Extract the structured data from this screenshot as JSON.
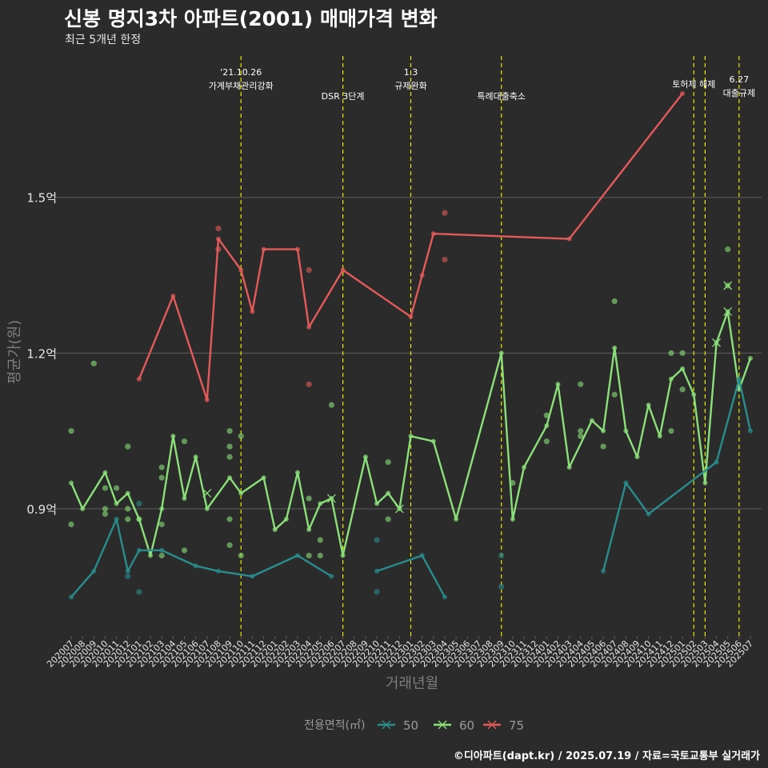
{
  "title": "신봉 명지3차 아파트(2001) 매매가격 변화",
  "subtitle": "최근 5개년 한정",
  "caption": "©디아파트(dapt.kr) / 2025.07.19 / 자료=국토교통부 실거래가",
  "colors": {
    "background": "#2b2b2b",
    "grid": "#5e5e5e",
    "event_line": "#e8e800",
    "text": "#e6e6e6"
  },
  "chart_data": {
    "type": "line",
    "xlabel": "거래년월",
    "ylabel": "평균가(원)",
    "ylim": [
      0.655,
      1.78
    ],
    "yticks": [
      {
        "value": 0.9,
        "label": "0.9억"
      },
      {
        "value": 1.2,
        "label": "1.2억"
      },
      {
        "value": 1.5,
        "label": "1.5억"
      }
    ],
    "categories": [
      "202007",
      "202008",
      "202009",
      "202010",
      "202011",
      "202012",
      "202101",
      "202102",
      "202103",
      "202104",
      "202105",
      "202106",
      "202107",
      "202108",
      "202109",
      "202110",
      "202111",
      "202112",
      "202201",
      "202202",
      "202203",
      "202204",
      "202205",
      "202206",
      "202207",
      "202208",
      "202209",
      "202210",
      "202211",
      "202212",
      "202301",
      "202302",
      "202303",
      "202304",
      "202305",
      "202306",
      "202307",
      "202308",
      "202309",
      "202310",
      "202311",
      "202312",
      "202401",
      "202402",
      "202403",
      "202404",
      "202405",
      "202406",
      "202407",
      "202408",
      "202409",
      "202410",
      "202411",
      "202412",
      "202501",
      "202502",
      "202503",
      "202504",
      "202505",
      "202506",
      "202507"
    ],
    "legend": {
      "title": "전용면적(㎡)",
      "position": "bottom"
    },
    "series": [
      {
        "name": "50",
        "color": "#2a8c8c",
        "line": [
          [
            0,
            0.73
          ],
          [
            2,
            0.78
          ],
          [
            4,
            0.88
          ],
          [
            5,
            0.78
          ],
          [
            6,
            0.82
          ],
          [
            8,
            0.82
          ],
          [
            11,
            0.79
          ],
          [
            13,
            0.78
          ],
          [
            16,
            0.77
          ],
          [
            20,
            0.81
          ],
          [
            23,
            0.77
          ],
          null,
          [
            27,
            0.78
          ],
          [
            31,
            0.81
          ],
          [
            33,
            0.73
          ],
          null,
          [
            47,
            0.78
          ],
          [
            49,
            0.95
          ],
          [
            51,
            0.89
          ],
          [
            57,
            0.99
          ],
          [
            59,
            1.15
          ],
          [
            60,
            1.05
          ]
        ],
        "points": [
          [
            6,
            0.91
          ],
          [
            5,
            0.77
          ],
          [
            6,
            0.74
          ],
          [
            27,
            0.84
          ],
          [
            27,
            0.74
          ],
          [
            38,
            0.81
          ],
          [
            38,
            0.75
          ]
        ],
        "crosses": []
      },
      {
        "name": "60",
        "color": "#8be07a",
        "line": [
          [
            0,
            0.95
          ],
          [
            1,
            0.9
          ],
          [
            3,
            0.97
          ],
          [
            4,
            0.91
          ],
          [
            5,
            0.93
          ],
          [
            6,
            0.88
          ],
          [
            7,
            0.81
          ],
          [
            8,
            0.9
          ],
          [
            9,
            1.04
          ],
          [
            10,
            0.92
          ],
          [
            11,
            1.0
          ],
          [
            12,
            0.9
          ],
          [
            14,
            0.96
          ],
          [
            15,
            0.93
          ],
          [
            17,
            0.96
          ],
          [
            18,
            0.86
          ],
          [
            19,
            0.88
          ],
          [
            20,
            0.97
          ],
          [
            21,
            0.86
          ],
          [
            22,
            0.91
          ],
          [
            23,
            0.92
          ],
          [
            24,
            0.81
          ],
          [
            26,
            1.0
          ],
          [
            27,
            0.91
          ],
          [
            28,
            0.93
          ],
          [
            29,
            0.9
          ],
          [
            30,
            1.04
          ],
          [
            32,
            1.03
          ],
          [
            34,
            0.88
          ],
          [
            38,
            1.2
          ],
          [
            39,
            0.88
          ],
          [
            40,
            0.98
          ],
          [
            42,
            1.06
          ],
          [
            43,
            1.14
          ],
          [
            44,
            0.98
          ],
          [
            46,
            1.07
          ],
          [
            47,
            1.05
          ],
          [
            48,
            1.21
          ],
          [
            49,
            1.05
          ],
          [
            50,
            1.0
          ],
          [
            51,
            1.1
          ],
          [
            52,
            1.04
          ],
          [
            53,
            1.15
          ],
          [
            54,
            1.17
          ],
          [
            55,
            1.12
          ],
          [
            56,
            0.95
          ],
          [
            57,
            1.22
          ],
          [
            58,
            1.28
          ],
          [
            59,
            1.13
          ],
          [
            60,
            1.19
          ]
        ],
        "points": [
          [
            0,
            1.05
          ],
          [
            0,
            0.87
          ],
          [
            2,
            1.18
          ],
          [
            3,
            0.94
          ],
          [
            3,
            0.89
          ],
          [
            3,
            0.9
          ],
          [
            4,
            0.94
          ],
          [
            5,
            1.02
          ],
          [
            5,
            0.88
          ],
          [
            5,
            0.9
          ],
          [
            6,
            0.88
          ],
          [
            8,
            0.96
          ],
          [
            8,
            0.98
          ],
          [
            8,
            0.87
          ],
          [
            8,
            0.81
          ],
          [
            10,
            1.03
          ],
          [
            10,
            0.82
          ],
          [
            14,
            1.05
          ],
          [
            14,
            1.02
          ],
          [
            14,
            1.0
          ],
          [
            14,
            0.88
          ],
          [
            14,
            0.83
          ],
          [
            15,
            1.04
          ],
          [
            15,
            0.81
          ],
          [
            21,
            0.92
          ],
          [
            21,
            0.81
          ],
          [
            22,
            0.84
          ],
          [
            22,
            0.81
          ],
          [
            23,
            1.1
          ],
          [
            28,
            0.99
          ],
          [
            28,
            0.88
          ],
          [
            39,
            0.95
          ],
          [
            42,
            1.08
          ],
          [
            42,
            1.03
          ],
          [
            45,
            1.14
          ],
          [
            45,
            1.04
          ],
          [
            45,
            1.05
          ],
          [
            47,
            1.02
          ],
          [
            48,
            1.3
          ],
          [
            48,
            1.12
          ],
          [
            53,
            1.2
          ],
          [
            53,
            1.05
          ],
          [
            54,
            1.2
          ],
          [
            54,
            1.13
          ],
          [
            58,
            1.4
          ],
          [
            58,
            1.33
          ]
        ],
        "crosses": [
          [
            12,
            0.93
          ],
          [
            23,
            0.92
          ],
          [
            29,
            0.9
          ],
          [
            57,
            1.22
          ],
          [
            58,
            1.28
          ],
          [
            58,
            1.33
          ]
        ]
      },
      {
        "name": "75",
        "color": "#e25a5a",
        "line": [
          [
            6,
            1.15
          ],
          [
            9,
            1.31
          ],
          [
            12,
            1.11
          ],
          [
            13,
            1.42
          ],
          [
            15,
            1.36
          ],
          [
            16,
            1.28
          ],
          [
            17,
            1.4
          ],
          [
            20,
            1.4
          ],
          [
            21,
            1.25
          ],
          [
            24,
            1.36
          ],
          [
            30,
            1.27
          ],
          [
            31,
            1.35
          ],
          [
            32,
            1.43
          ],
          [
            44,
            1.42
          ],
          [
            54,
            1.7
          ]
        ],
        "points": [
          [
            13,
            1.44
          ],
          [
            13,
            1.4
          ],
          [
            21,
            1.36
          ],
          [
            21,
            1.14
          ],
          [
            33,
            1.47
          ],
          [
            33,
            1.38
          ]
        ],
        "crosses": []
      }
    ],
    "events": [
      {
        "x": 15.0,
        "lines": [
          "'21.10.26",
          "가계부채관리강화"
        ],
        "level": 0
      },
      {
        "x": 24.0,
        "lines": [
          "DSR 3단계"
        ],
        "level": 2
      },
      {
        "x": 30.0,
        "lines": [
          "1.3",
          "규제완화"
        ],
        "level": 0
      },
      {
        "x": 38.0,
        "lines": [
          "특례대출축소"
        ],
        "level": 2
      },
      {
        "x": 55.0,
        "lines": [
          "토허제 해제"
        ],
        "level": 1
      },
      {
        "x": 56.0,
        "lines": [],
        "level": 1
      },
      {
        "x": 59.0,
        "lines": [
          "6.27",
          "대출규제"
        ],
        "level": 0.6
      }
    ]
  }
}
